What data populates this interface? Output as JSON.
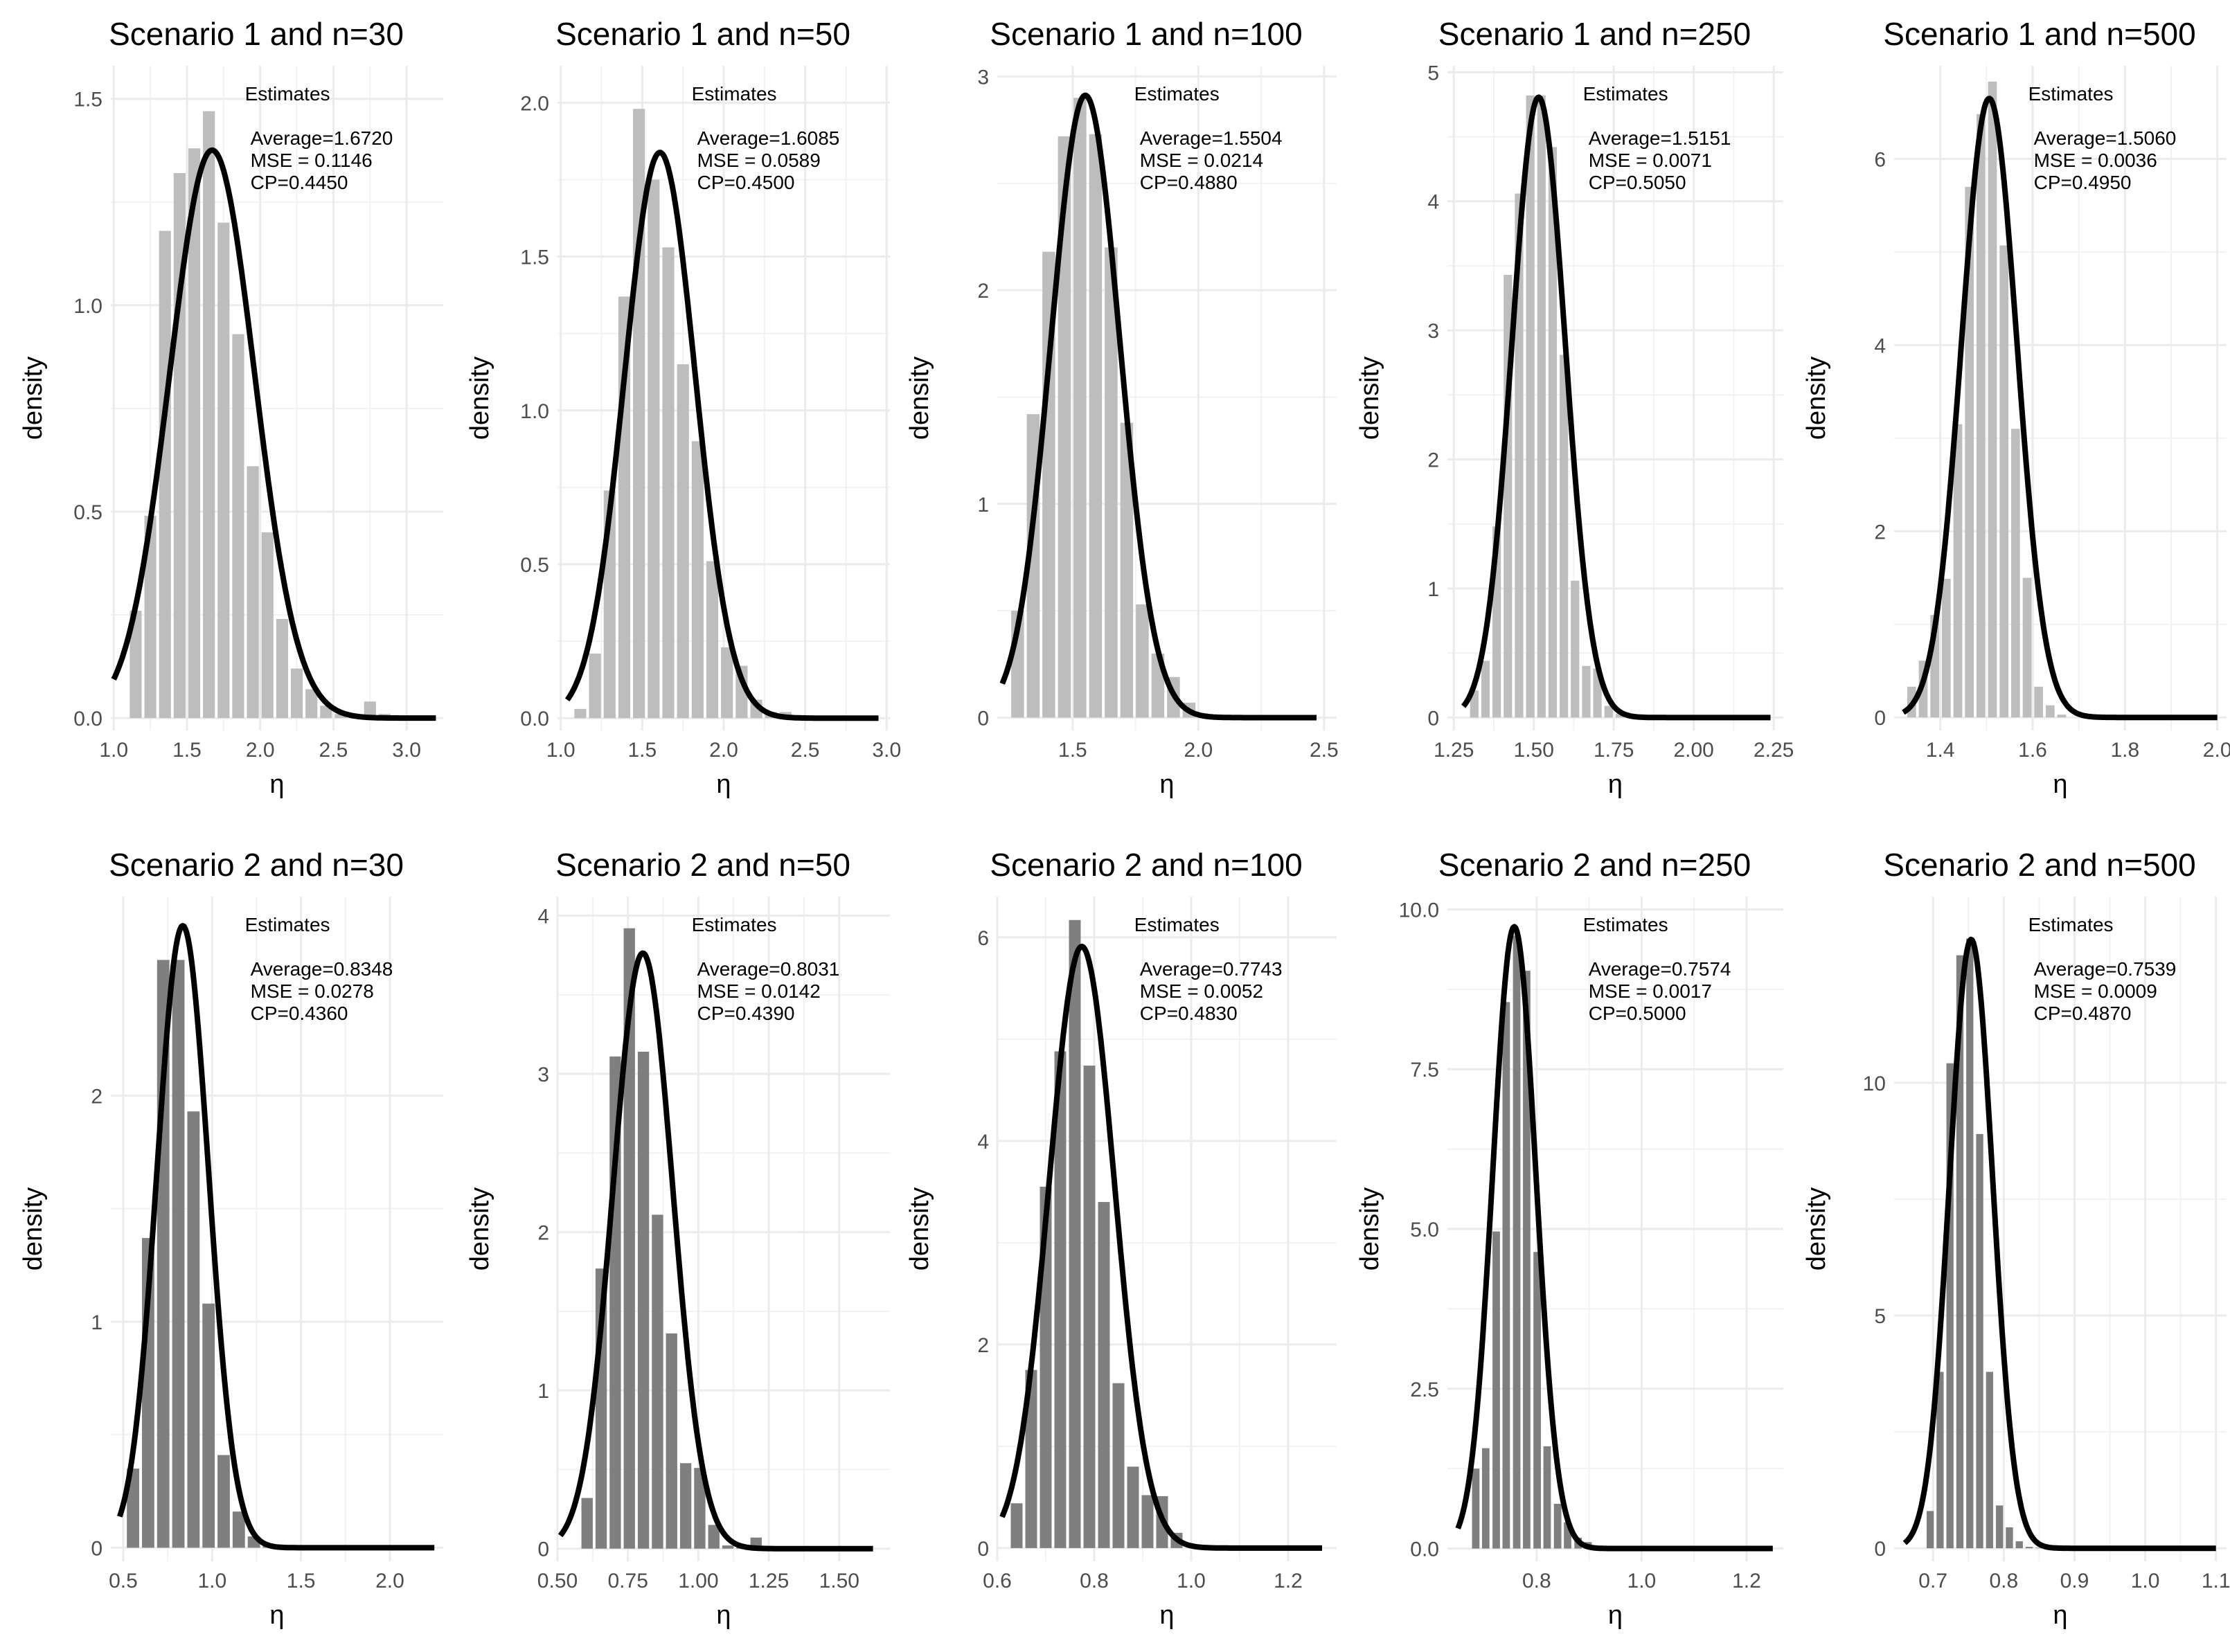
{
  "chart_data": [
    {
      "type": "bar",
      "title": "Scenario 1 and n=30",
      "xlabel": "η",
      "ylabel": "density",
      "xlim": [
        0.98,
        3.25
      ],
      "ylim": [
        -0.03,
        1.58
      ],
      "xticks": [
        1.0,
        1.5,
        2.0,
        2.5,
        3.0
      ],
      "xtick_labels": [
        "1.0",
        "1.5",
        "2.0",
        "2.5",
        "3.0"
      ],
      "yticks": [
        0.0,
        0.5,
        1.0,
        1.5
      ],
      "ytick_labels": [
        "0.0",
        "0.5",
        "1.0",
        "1.5"
      ],
      "bin_width": 0.1,
      "bar_color": "#bdbdbd",
      "bin_centers": [
        1.15,
        1.25,
        1.35,
        1.45,
        1.55,
        1.65,
        1.75,
        1.85,
        1.95,
        2.05,
        2.15,
        2.25,
        2.35,
        2.45,
        2.55,
        2.65,
        2.75,
        2.85
      ],
      "values": [
        0.26,
        0.49,
        1.18,
        1.32,
        1.38,
        1.47,
        1.2,
        0.93,
        0.61,
        0.45,
        0.24,
        0.12,
        0.07,
        0.03,
        0.01,
        0.01,
        0.04,
        0.01
      ],
      "curve": {
        "type": "normal",
        "mean": 1.672,
        "sd": 0.29,
        "x_range": [
          1.0,
          3.2
        ],
        "color": "#000000"
      },
      "legend_title": "Estimates",
      "average": "Average=1.6720",
      "mse": "MSE = 0.1146",
      "cp": "CP=0.4450"
    },
    {
      "type": "bar",
      "title": "Scenario 1 and n=50",
      "xlabel": "η",
      "ylabel": "density",
      "xlim": [
        0.98,
        3.02
      ],
      "ylim": [
        -0.04,
        2.12
      ],
      "xticks": [
        1.0,
        1.5,
        2.0,
        2.5,
        3.0
      ],
      "xtick_labels": [
        "1.0",
        "1.5",
        "2.0",
        "2.5",
        "3.0"
      ],
      "yticks": [
        0.0,
        0.5,
        1.0,
        1.5,
        2.0
      ],
      "ytick_labels": [
        "0.0",
        "0.5",
        "1.0",
        "1.5",
        "2.0"
      ],
      "bin_width": 0.09,
      "bar_color": "#bdbdbd",
      "bin_centers": [
        1.12,
        1.21,
        1.3,
        1.39,
        1.48,
        1.57,
        1.66,
        1.75,
        1.84,
        1.93,
        2.02,
        2.11,
        2.2,
        2.29,
        2.38,
        2.47
      ],
      "values": [
        0.03,
        0.21,
        0.74,
        1.37,
        1.98,
        1.75,
        1.53,
        1.15,
        0.9,
        0.51,
        0.23,
        0.17,
        0.06,
        0.02,
        0.02,
        0.01
      ],
      "curve": {
        "type": "normal",
        "mean": 1.6085,
        "sd": 0.217,
        "x_range": [
          1.04,
          2.95
        ],
        "color": "#000000"
      },
      "legend_title": "Estimates",
      "average": "Average=1.6085",
      "mse": "MSE = 0.0589",
      "cp": "CP=0.4500"
    },
    {
      "type": "bar",
      "title": "Scenario 1 and n=100",
      "xlabel": "η",
      "ylabel": "density",
      "xlim": [
        1.2,
        2.55
      ],
      "ylim": [
        -0.06,
        3.05
      ],
      "xticks": [
        1.5,
        2.0,
        2.5
      ],
      "xtick_labels": [
        "1.5",
        "2.0",
        "2.5"
      ],
      "yticks": [
        0,
        1,
        2,
        3
      ],
      "ytick_labels": [
        "0",
        "1",
        "2",
        "3"
      ],
      "bin_width": 0.062,
      "bar_color": "#bdbdbd",
      "bin_centers": [
        1.281,
        1.343,
        1.405,
        1.467,
        1.529,
        1.591,
        1.653,
        1.715,
        1.777,
        1.839,
        1.901,
        1.963
      ],
      "values": [
        0.5,
        1.42,
        2.18,
        2.72,
        2.9,
        2.73,
        2.2,
        1.38,
        0.53,
        0.3,
        0.19,
        0.07
      ],
      "curve": {
        "type": "normal",
        "mean": 1.5504,
        "sd": 0.137,
        "x_range": [
          1.22,
          2.47
        ],
        "color": "#000000"
      },
      "legend_title": "Estimates",
      "average": "Average=1.5504",
      "mse": "MSE = 0.0214",
      "cp": "CP=0.4880"
    },
    {
      "type": "bar",
      "title": "Scenario 1 and n=250",
      "xlabel": "η",
      "ylabel": "density",
      "xlim": [
        1.23,
        2.28
      ],
      "ylim": [
        -0.1,
        5.05
      ],
      "xticks": [
        1.25,
        1.5,
        1.75,
        2.0,
        2.25
      ],
      "xtick_labels": [
        "1.25",
        "1.50",
        "1.75",
        "2.00",
        "2.25"
      ],
      "yticks": [
        0,
        1,
        2,
        3,
        4,
        5
      ],
      "ytick_labels": [
        "0",
        "1",
        "2",
        "3",
        "4",
        "5"
      ],
      "bin_width": 0.035,
      "bar_color": "#bdbdbd",
      "bin_centers": [
        1.314,
        1.349,
        1.384,
        1.419,
        1.454,
        1.489,
        1.524,
        1.559,
        1.594,
        1.629,
        1.664,
        1.699,
        1.734,
        1.769,
        1.804,
        1.839
      ],
      "values": [
        0.21,
        0.44,
        1.48,
        3.43,
        4.06,
        4.82,
        4.82,
        4.42,
        2.81,
        1.06,
        0.4,
        0.38,
        0.09,
        0.03,
        0.02,
        0.01
      ],
      "curve": {
        "type": "normal",
        "mean": 1.5151,
        "sd": 0.083,
        "x_range": [
          1.28,
          2.24
        ],
        "color": "#000000"
      },
      "legend_title": "Estimates",
      "average": "Average=1.5151",
      "mse": "MSE = 0.0071",
      "cp": "CP=0.5050"
    },
    {
      "type": "bar",
      "title": "Scenario 1 and n=500",
      "xlabel": "η",
      "ylabel": "density",
      "xlim": [
        1.3,
        2.02
      ],
      "ylim": [
        -0.14,
        7.0
      ],
      "xticks": [
        1.4,
        1.6,
        1.8,
        2.0
      ],
      "xtick_labels": [
        "1.4",
        "1.6",
        "1.8",
        "2.0"
      ],
      "yticks": [
        0,
        2,
        4,
        6
      ],
      "ytick_labels": [
        "0",
        "2",
        "4",
        "6"
      ],
      "bin_width": 0.025,
      "bar_color": "#bdbdbd",
      "bin_centers": [
        1.338,
        1.363,
        1.388,
        1.413,
        1.438,
        1.463,
        1.488,
        1.513,
        1.538,
        1.563,
        1.588,
        1.613,
        1.638,
        1.663
      ],
      "values": [
        0.33,
        0.61,
        1.1,
        1.49,
        3.15,
        5.7,
        6.48,
        6.83,
        5.07,
        3.1,
        1.5,
        0.33,
        0.13,
        0.03
      ],
      "curve": {
        "type": "normal",
        "mean": 1.506,
        "sd": 0.06,
        "x_range": [
          1.32,
          2.0
        ],
        "color": "#000000"
      },
      "legend_title": "Estimates",
      "average": "Average=1.5060",
      "mse": "MSE = 0.0036",
      "cp": "CP=0.4950"
    },
    {
      "type": "bar",
      "title": "Scenario 2 and n=30",
      "xlabel": "η",
      "ylabel": "density",
      "xlim": [
        0.43,
        2.3
      ],
      "ylim": [
        -0.06,
        2.88
      ],
      "xticks": [
        0.5,
        1.0,
        1.5,
        2.0
      ],
      "xtick_labels": [
        "0.5",
        "1.0",
        "1.5",
        "2.0"
      ],
      "yticks": [
        0,
        1,
        2
      ],
      "ytick_labels": [
        "0",
        "1",
        "2"
      ],
      "bin_width": 0.085,
      "bar_color": "#7f7f7f",
      "bin_centers": [
        0.555,
        0.64,
        0.725,
        0.81,
        0.895,
        0.98,
        1.065,
        1.15,
        1.235,
        1.32
      ],
      "values": [
        0.35,
        1.37,
        2.6,
        2.6,
        1.93,
        1.08,
        0.41,
        0.16,
        0.05,
        0.01
      ],
      "curve": {
        "type": "normal",
        "mean": 0.8348,
        "sd": 0.145,
        "x_range": [
          0.48,
          2.25
        ],
        "color": "#000000"
      },
      "legend_title": "Estimates",
      "average": "Average=0.8348",
      "mse": "MSE = 0.0278",
      "cp": "CP=0.4360"
    },
    {
      "type": "bar",
      "title": "Scenario 2 and n=50",
      "xlabel": "η",
      "ylabel": "density",
      "xlim": [
        0.5,
        1.68
      ],
      "ylim": [
        -0.08,
        4.12
      ],
      "xticks": [
        0.5,
        0.75,
        1.0,
        1.25,
        1.5
      ],
      "xtick_labels": [
        "0.50",
        "0.75",
        "1.00",
        "1.25",
        "1.50"
      ],
      "yticks": [
        0,
        1,
        2,
        3,
        4
      ],
      "ytick_labels": [
        "0",
        "1",
        "2",
        "3",
        "4"
      ],
      "bin_width": 0.05,
      "bar_color": "#7f7f7f",
      "bin_centers": [
        0.605,
        0.655,
        0.705,
        0.755,
        0.805,
        0.855,
        0.905,
        0.955,
        1.005,
        1.055,
        1.105,
        1.155,
        1.205
      ],
      "values": [
        0.32,
        1.77,
        3.11,
        3.92,
        3.14,
        2.11,
        1.36,
        0.54,
        0.51,
        0.15,
        0.02,
        0.01,
        0.07
      ],
      "curve": {
        "type": "normal",
        "mean": 0.8031,
        "sd": 0.106,
        "x_range": [
          0.51,
          1.62
        ],
        "color": "#000000"
      },
      "legend_title": "Estimates",
      "average": "Average=0.8031",
      "mse": "MSE = 0.0142",
      "cp": "CP=0.4390"
    },
    {
      "type": "bar",
      "title": "Scenario 2 and n=100",
      "xlabel": "η",
      "ylabel": "density",
      "xlim": [
        0.6,
        1.3
      ],
      "ylim": [
        -0.13,
        6.4
      ],
      "xticks": [
        0.6,
        0.8,
        1.0,
        1.2
      ],
      "xtick_labels": [
        "0.6",
        "0.8",
        "1.0",
        "1.2"
      ],
      "yticks": [
        0,
        2,
        4,
        6
      ],
      "ytick_labels": [
        "0",
        "2",
        "4",
        "6"
      ],
      "bin_width": 0.03,
      "bar_color": "#7f7f7f",
      "bin_centers": [
        0.64,
        0.67,
        0.7,
        0.73,
        0.76,
        0.79,
        0.82,
        0.85,
        0.88,
        0.91,
        0.94,
        0.97
      ],
      "values": [
        0.44,
        1.75,
        3.55,
        4.88,
        6.17,
        4.74,
        3.4,
        1.62,
        0.8,
        0.52,
        0.51,
        0.15
      ],
      "curve": {
        "type": "normal",
        "mean": 0.7743,
        "sd": 0.0675,
        "x_range": [
          0.61,
          1.27
        ],
        "color": "#000000"
      },
      "legend_title": "Estimates",
      "average": "Average=0.7743",
      "mse": "MSE = 0.0052",
      "cp": "CP=0.4830"
    },
    {
      "type": "bar",
      "title": "Scenario 2 and n=250",
      "xlabel": "η",
      "ylabel": "density",
      "xlim": [
        0.63,
        1.27
      ],
      "ylim": [
        -0.2,
        10.2
      ],
      "xticks": [
        0.8,
        1.0,
        1.2
      ],
      "xtick_labels": [
        "0.8",
        "1.0",
        "1.2"
      ],
      "yticks": [
        0,
        2.5,
        5.0,
        7.5,
        10.0
      ],
      "ytick_labels": [
        "0.0",
        "2.5",
        "5.0",
        "7.5",
        "10.0"
      ],
      "bin_width": 0.0195,
      "bar_color": "#7f7f7f",
      "bin_centers": [
        0.684,
        0.703,
        0.723,
        0.742,
        0.762,
        0.781,
        0.801,
        0.82,
        0.84,
        0.859,
        0.879,
        0.898
      ],
      "values": [
        1.25,
        1.57,
        4.96,
        8.55,
        9.59,
        9.04,
        4.64,
        1.6,
        0.7,
        0.41,
        0.17,
        0.1
      ],
      "curve": {
        "type": "normal",
        "mean": 0.7574,
        "sd": 0.041,
        "x_range": [
          0.65,
          1.25
        ],
        "color": "#000000"
      },
      "legend_title": "Estimates",
      "average": "Average=0.7574",
      "mse": "MSE = 0.0017",
      "cp": "CP=0.5000"
    },
    {
      "type": "bar",
      "title": "Scenario 2 and n=500",
      "xlabel": "η",
      "ylabel": "density",
      "xlim": [
        0.645,
        1.115
      ],
      "ylim": [
        -0.28,
        14.0
      ],
      "xticks": [
        0.7,
        0.8,
        0.9,
        1.0,
        1.1
      ],
      "xtick_labels": [
        "0.7",
        "0.8",
        "0.9",
        "1.0",
        "1.1"
      ],
      "yticks": [
        0,
        5,
        10
      ],
      "ytick_labels": [
        "0",
        "5",
        "10"
      ],
      "bin_width": 0.014,
      "bar_color": "#7f7f7f",
      "bin_centers": [
        0.696,
        0.71,
        0.724,
        0.738,
        0.752,
        0.766,
        0.78,
        0.794,
        0.808,
        0.822,
        0.836,
        0.85
      ],
      "values": [
        0.8,
        3.79,
        10.42,
        12.74,
        13.1,
        8.9,
        3.79,
        0.92,
        0.45,
        0.15,
        0.03,
        0.01
      ],
      "curve": {
        "type": "normal",
        "mean": 0.7539,
        "sd": 0.0305,
        "x_range": [
          0.66,
          1.1
        ],
        "color": "#000000"
      },
      "legend_title": "Estimates",
      "average": "Average=0.7539",
      "mse": "MSE = 0.0009",
      "cp": "CP=0.4870"
    }
  ]
}
